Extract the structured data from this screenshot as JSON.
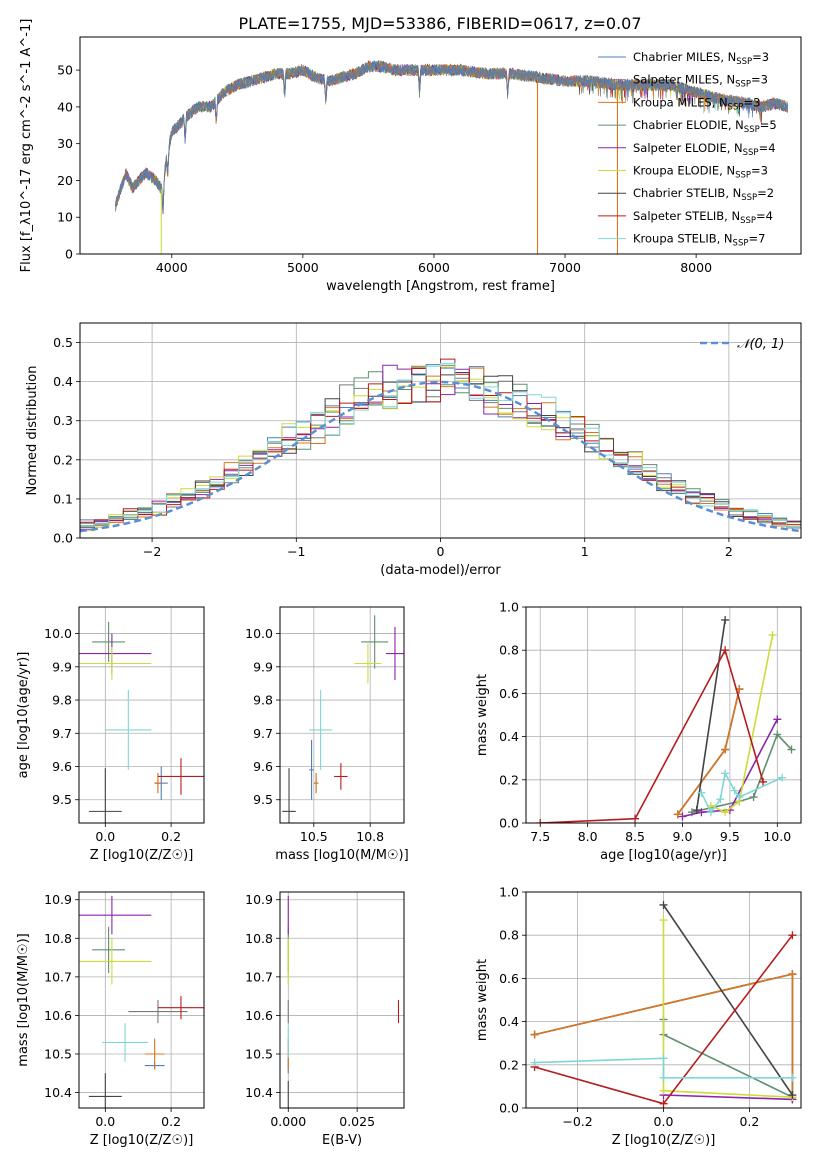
{
  "figure_title": "PLATE=1755, MJD=53386, FIBERID=0617, z=0.07",
  "models": [
    {
      "name": "Chabrier MILES",
      "nssp": "3",
      "color": "#4f7fbf"
    },
    {
      "name": "Salpeter MILES",
      "nssp": "3",
      "color": "#7a7a7a"
    },
    {
      "name": "Kroupa MILES",
      "nssp": "3",
      "color": "#d9771f"
    },
    {
      "name": "Chabrier ELODIE",
      "nssp": "5",
      "color": "#5f8f6f"
    },
    {
      "name": "Salpeter ELODIE",
      "nssp": "4",
      "color": "#8e24aa"
    },
    {
      "name": "Kroupa ELODIE",
      "nssp": "3",
      "color": "#cddc39"
    },
    {
      "name": "Chabrier STELIB",
      "nssp": "2",
      "color": "#444444"
    },
    {
      "name": "Salpeter STELIB",
      "nssp": "4",
      "color": "#b71c1c"
    },
    {
      "name": "Kroupa STELIB",
      "nssp": "7",
      "color": "#7fd6d6"
    }
  ],
  "chart_data": [
    {
      "id": "spectrum",
      "type": "line",
      "xlabel": "wavelength [Angstrom, rest frame]",
      "ylabel": "Flux [f_λ10^-17 erg cm^-2 s^-1 A^-1]",
      "xlim": [
        3300,
        8800
      ],
      "ylim": [
        0,
        59
      ],
      "xticks": [
        4000,
        5000,
        6000,
        7000,
        8000
      ],
      "yticks": [
        0,
        10,
        20,
        30,
        40,
        50
      ],
      "grid": false,
      "legend": "top-right",
      "continuum": {
        "x": [
          3570,
          3650,
          3700,
          3800,
          3880,
          3930,
          3960,
          4000,
          4100,
          4200,
          4300,
          4400,
          4500,
          4600,
          4700,
          4800,
          4900,
          5000,
          5100,
          5200,
          5300,
          5400,
          5500,
          5600,
          5700,
          5800,
          5900,
          6000,
          6200,
          6400,
          6600,
          6800,
          7000,
          7200,
          7400,
          7600,
          7800,
          8000,
          8200,
          8400,
          8500,
          8600,
          8700
        ],
        "y": [
          13,
          22,
          18,
          22,
          20,
          17,
          26,
          33,
          37,
          40,
          40,
          44,
          46,
          47,
          48,
          49,
          49,
          50,
          48,
          47,
          48,
          49,
          51,
          51,
          50,
          50,
          50,
          50,
          50,
          49,
          49,
          48,
          47,
          47,
          46,
          46,
          46,
          44,
          42,
          41,
          40,
          41,
          40
        ]
      },
      "dropouts": [
        3920,
        6790,
        7400
      ]
    },
    {
      "id": "residuals",
      "type": "histogram",
      "xlabel": "(data-model)/error",
      "ylabel": "Normed distribution",
      "xlim": [
        -2.5,
        2.5
      ],
      "ylim": [
        0,
        0.55
      ],
      "xticks": [
        -2,
        -1,
        0,
        1,
        2
      ],
      "yticks": [
        0.0,
        0.1,
        0.2,
        0.3,
        0.4,
        0.5
      ],
      "grid": true,
      "legend": "top-right",
      "gaussian_label": "𝒩(0, 1)",
      "gaussian_color": "#5b8fd4",
      "bin_width": 0.1
    },
    {
      "id": "age-vs-Z",
      "type": "errorbar",
      "xlabel": "Z [log10(Z/Z☉)]",
      "ylabel": "age  [log10(age/yr)]",
      "xlim": [
        -0.08,
        0.3
      ],
      "ylim": [
        9.43,
        10.08
      ],
      "xticks": [
        0.0,
        0.2
      ],
      "yticks": [
        9.5,
        9.6,
        9.7,
        9.8,
        9.9,
        10.0
      ],
      "points": [
        {
          "model": 0,
          "x": 0.17,
          "y": 9.55,
          "xerr": 0.02,
          "yerr": 0.05
        },
        {
          "model": 1,
          "x": 0.16,
          "y": 9.55,
          "xerr": 0.01,
          "yerr": 0.03
        },
        {
          "model": 2,
          "x": 0.16,
          "y": 9.55,
          "xerr": 0.01,
          "yerr": 0.03
        },
        {
          "model": 3,
          "x": 0.01,
          "y": 9.975,
          "xerr": 0.05,
          "yerr": 0.06
        },
        {
          "model": 4,
          "x": 0.02,
          "y": 9.94,
          "xerr": 0.12,
          "yerr": 0.06
        },
        {
          "model": 5,
          "x": 0.02,
          "y": 9.91,
          "xerr": 0.12,
          "yerr": 0.05
        },
        {
          "model": 6,
          "x": 0.0,
          "y": 9.465,
          "xerr": 0.05,
          "yerr": 0.13
        },
        {
          "model": 7,
          "x": 0.23,
          "y": 9.57,
          "xerr": 0.07,
          "yerr": 0.055
        },
        {
          "model": 8,
          "x": 0.07,
          "y": 9.71,
          "xerr": 0.07,
          "yerr": 0.12
        }
      ]
    },
    {
      "id": "age-vs-mass",
      "type": "errorbar",
      "xlabel": "mass [log10(M/M☉)]",
      "ylabel": "",
      "xlim": [
        10.35,
        10.9
      ],
      "ylim": [
        9.43,
        10.08
      ],
      "xticks": [
        10.5,
        10.75
      ],
      "yticks": [
        9.5,
        9.6,
        9.7,
        9.8,
        9.9,
        10.0
      ],
      "points": [
        {
          "model": 0,
          "x": 10.49,
          "y": 9.59,
          "xerr": 0.01,
          "yerr": 0.09
        },
        {
          "model": 1,
          "x": 10.51,
          "y": 9.55,
          "xerr": 0.01,
          "yerr": 0.03
        },
        {
          "model": 2,
          "x": 10.51,
          "y": 9.55,
          "xerr": 0.01,
          "yerr": 0.03
        },
        {
          "model": 3,
          "x": 10.77,
          "y": 9.975,
          "xerr": 0.06,
          "yerr": 0.08
        },
        {
          "model": 4,
          "x": 10.86,
          "y": 9.94,
          "xerr": 0.04,
          "yerr": 0.08
        },
        {
          "model": 5,
          "x": 10.74,
          "y": 9.91,
          "xerr": 0.06,
          "yerr": 0.06
        },
        {
          "model": 6,
          "x": 10.39,
          "y": 9.465,
          "xerr": 0.03,
          "yerr": 0.13
        },
        {
          "model": 7,
          "x": 10.62,
          "y": 9.57,
          "xerr": 0.03,
          "yerr": 0.04
        },
        {
          "model": 8,
          "x": 10.53,
          "y": 9.71,
          "xerr": 0.05,
          "yerr": 0.12
        }
      ]
    },
    {
      "id": "mass-vs-Z",
      "type": "errorbar",
      "xlabel": "Z [log10(Z/Z☉)]",
      "ylabel": "mass [log10(M/M☉)]",
      "xlim": [
        -0.08,
        0.3
      ],
      "ylim": [
        10.36,
        10.92
      ],
      "xticks": [
        0.0,
        0.2
      ],
      "yticks": [
        10.4,
        10.5,
        10.6,
        10.7,
        10.8,
        10.9
      ],
      "points": [
        {
          "model": 0,
          "x": 0.15,
          "y": 10.47,
          "xerr": 0.03,
          "yerr": 0.01
        },
        {
          "model": 1,
          "x": 0.16,
          "y": 10.61,
          "xerr": 0.09,
          "yerr": 0.03
        },
        {
          "model": 2,
          "x": 0.15,
          "y": 10.5,
          "xerr": 0.03,
          "yerr": 0.04
        },
        {
          "model": 3,
          "x": 0.01,
          "y": 10.77,
          "xerr": 0.05,
          "yerr": 0.06
        },
        {
          "model": 4,
          "x": 0.02,
          "y": 10.86,
          "xerr": 0.12,
          "yerr": 0.05
        },
        {
          "model": 5,
          "x": 0.02,
          "y": 10.74,
          "xerr": 0.12,
          "yerr": 0.06
        },
        {
          "model": 6,
          "x": 0.0,
          "y": 10.39,
          "xerr": 0.05,
          "yerr": 0.06
        },
        {
          "model": 7,
          "x": 0.23,
          "y": 10.62,
          "xerr": 0.07,
          "yerr": 0.03
        },
        {
          "model": 8,
          "x": 0.06,
          "y": 10.53,
          "xerr": 0.07,
          "yerr": 0.05
        }
      ]
    },
    {
      "id": "mass-vs-ebv",
      "type": "errorbar",
      "xlabel": "E(B-V)",
      "ylabel": "",
      "xlim": [
        -0.003,
        0.042
      ],
      "ylim": [
        10.36,
        10.92
      ],
      "xticks": [
        0.0,
        0.025
      ],
      "yticks": [
        10.4,
        10.5,
        10.6,
        10.7,
        10.8,
        10.9
      ],
      "points": [
        {
          "model": 0,
          "x": 0.0,
          "y": 10.47,
          "xerr": 0,
          "yerr": 0.02
        },
        {
          "model": 1,
          "x": 0.0,
          "y": 10.61,
          "xerr": 0,
          "yerr": 0.03
        },
        {
          "model": 2,
          "x": 0.0,
          "y": 10.5,
          "xerr": 0,
          "yerr": 0.04
        },
        {
          "model": 3,
          "x": 0.0,
          "y": 10.77,
          "xerr": 0,
          "yerr": 0.06
        },
        {
          "model": 4,
          "x": 0.0,
          "y": 10.86,
          "xerr": 0,
          "yerr": 0.05
        },
        {
          "model": 5,
          "x": 0.0,
          "y": 10.74,
          "xerr": 0,
          "yerr": 0.06
        },
        {
          "model": 6,
          "x": 0.0,
          "y": 10.39,
          "xerr": 0,
          "yerr": 0.04
        },
        {
          "model": 7,
          "x": 0.04,
          "y": 10.61,
          "xerr": 0,
          "yerr": 0.03
        },
        {
          "model": 8,
          "x": 0.0,
          "y": 10.53,
          "xerr": 0,
          "yerr": 0.04
        }
      ]
    },
    {
      "id": "weight-vs-age",
      "type": "line",
      "xlabel": "age  [log10(age/yr)]",
      "ylabel": "mass weight",
      "xlim": [
        7.35,
        10.25
      ],
      "ylim": [
        0,
        1.0
      ],
      "xticks": [
        7.5,
        8.0,
        8.5,
        9.0,
        9.5,
        10.0
      ],
      "yticks": [
        0.0,
        0.2,
        0.4,
        0.6,
        0.8,
        1.0
      ],
      "grid": true,
      "series": [
        {
          "model": 0,
          "x": [
            8.95,
            9.45,
            9.6
          ],
          "y": [
            0.04,
            0.34,
            0.62
          ]
        },
        {
          "model": 1,
          "x": [
            8.95,
            9.45,
            9.6
          ],
          "y": [
            0.04,
            0.34,
            0.62
          ]
        },
        {
          "model": 2,
          "x": [
            8.95,
            9.45,
            9.6
          ],
          "y": [
            0.04,
            0.34,
            0.62
          ]
        },
        {
          "model": 3,
          "x": [
            9.1,
            9.6,
            9.75,
            10.0,
            10.15
          ],
          "y": [
            0.05,
            0.1,
            0.12,
            0.41,
            0.34
          ]
        },
        {
          "model": 4,
          "x": [
            9.0,
            9.2,
            9.5,
            10.0
          ],
          "y": [
            0.03,
            0.05,
            0.06,
            0.48
          ]
        },
        {
          "model": 5,
          "x": [
            9.3,
            9.45,
            9.6,
            9.95
          ],
          "y": [
            0.08,
            0.05,
            0.1,
            0.87
          ]
        },
        {
          "model": 6,
          "x": [
            9.15,
            9.45
          ],
          "y": [
            0.06,
            0.94
          ]
        },
        {
          "model": 7,
          "x": [
            7.5,
            8.5,
            9.45,
            9.85
          ],
          "y": [
            0.0,
            0.02,
            0.8,
            0.19
          ]
        },
        {
          "model": 8,
          "x": [
            9.2,
            9.3,
            9.4,
            9.45,
            9.55,
            9.6,
            10.05
          ],
          "y": [
            0.14,
            0.05,
            0.11,
            0.23,
            0.15,
            0.12,
            0.21
          ]
        }
      ]
    },
    {
      "id": "weight-vs-Z",
      "type": "line",
      "xlabel": "Z [log10(Z/Z☉)]",
      "ylabel": "mass weight",
      "xlim": [
        -0.32,
        0.32
      ],
      "ylim": [
        0,
        1.0
      ],
      "xticks": [
        -0.2,
        0.0,
        0.2
      ],
      "yticks": [
        0.0,
        0.2,
        0.4,
        0.6,
        0.8,
        1.0
      ],
      "grid": true,
      "series": [
        {
          "model": 0,
          "x": [
            -0.3,
            0.3,
            0.3
          ],
          "y": [
            0.34,
            0.62,
            0.04
          ]
        },
        {
          "model": 1,
          "x": [
            -0.3,
            0.3,
            0.3
          ],
          "y": [
            0.34,
            0.62,
            0.04
          ]
        },
        {
          "model": 2,
          "x": [
            -0.3,
            0.3,
            0.3
          ],
          "y": [
            0.34,
            0.62,
            0.04
          ]
        },
        {
          "model": 3,
          "x": [
            0.0,
            0.0,
            0.3
          ],
          "y": [
            0.41,
            0.34,
            0.05
          ]
        },
        {
          "model": 4,
          "x": [
            0.0,
            0.3
          ],
          "y": [
            0.06,
            0.04
          ]
        },
        {
          "model": 5,
          "x": [
            0.0,
            0.0,
            0.3
          ],
          "y": [
            0.87,
            0.08,
            0.05
          ]
        },
        {
          "model": 6,
          "x": [
            0.0,
            0.3
          ],
          "y": [
            0.94,
            0.06
          ]
        },
        {
          "model": 7,
          "x": [
            -0.3,
            0.0,
            0.3
          ],
          "y": [
            0.19,
            0.02,
            0.8
          ]
        },
        {
          "model": 8,
          "x": [
            -0.3,
            0.0,
            0.0,
            0.3
          ],
          "y": [
            0.21,
            0.23,
            0.14,
            0.14
          ]
        }
      ]
    }
  ]
}
